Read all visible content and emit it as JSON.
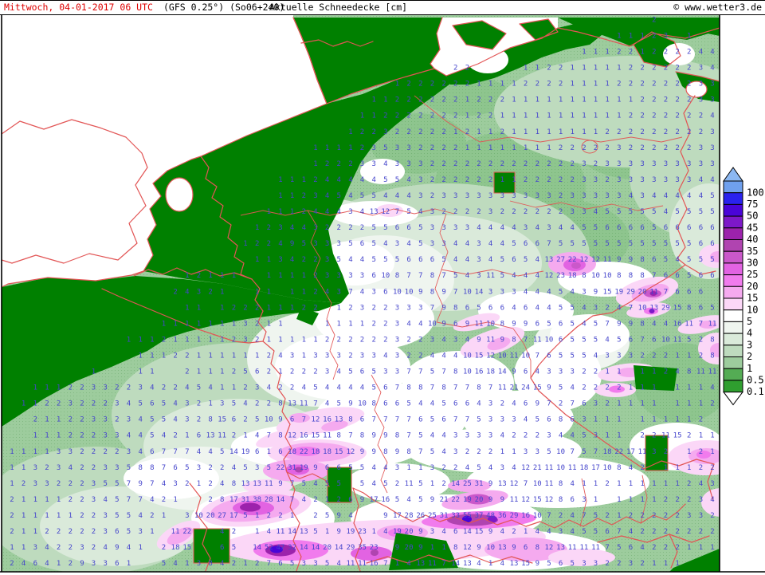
{
  "header": {
    "date_text": "Mittwoch, 04-01-2017  06 UTC",
    "model_text": "(GFS 0.25°) (So06+240)",
    "product_text": "Aktuelle Schneedecke [cm]",
    "copyright_text": "© www.wetter3.de"
  },
  "colors": {
    "header_date_red": "#dd0000",
    "number_blue": "#4545cc",
    "border_red": "#e25555",
    "land_green": "#008000",
    "sea_white": "#ffffff",
    "frame_black": "#000000"
  },
  "legend": {
    "unit": "cm",
    "up_arrow_color": "#8cb8f2",
    "down_arrow_color": "#ffffff",
    "entries": [
      {
        "label": "100",
        "color": "#6fa0ee"
      },
      {
        "label": "75",
        "color": "#2a22ee"
      },
      {
        "label": "50",
        "color": "#4a04d8"
      },
      {
        "label": "45",
        "color": "#7d18c8"
      },
      {
        "label": "40",
        "color": "#9c22ac"
      },
      {
        "label": "35",
        "color": "#b044b0"
      },
      {
        "label": "30",
        "color": "#ca58ca"
      },
      {
        "label": "25",
        "color": "#e263e2"
      },
      {
        "label": "20",
        "color": "#f17bed"
      },
      {
        "label": "15",
        "color": "#f5aaef"
      },
      {
        "label": "10",
        "color": "#fbd7f7"
      },
      {
        "label": "5",
        "color": "#ffffff"
      },
      {
        "label": "4",
        "color": "#eff5ef"
      },
      {
        "label": "3",
        "color": "#daeada"
      },
      {
        "label": "2",
        "color": "#bedbbe"
      },
      {
        "label": "1",
        "color": "#9dcc9d"
      },
      {
        "label": "0.5",
        "color": "#54ac54"
      },
      {
        "label": "0.1",
        "color": "#2f9e2f"
      }
    ]
  },
  "grid": {
    "rows": [
      {
        "s": 55,
        "v": "2"
      },
      {
        "s": 52,
        "v": "1 1 1 2 3 . 1"
      },
      {
        "s": 49,
        "v": "1 1 1 2 2 1 2 2 2 2 4 4"
      },
      {
        "s": 38,
        "v": "2 2 . . . . 1 1 2 2 1 1 1 1 1 2 2 2 2 2 2 3 4"
      },
      {
        "s": 33,
        "v": "1 2 2 2 2 2 2 1 1 1 1 2 2 2 2 1 1 1 1 2 2 2 2 2 2 2 3 3"
      },
      {
        "s": 31,
        "v": "1 1 2 2 2 2 2 2 1 2 2 2 1 1 1 1 1 1 1 1 1 1 1 2 2 2 2 2 3 3"
      },
      {
        "s": 30,
        "v": "1 1 2 2 2 2 2 2 2 1 2 2 1 1 1 1 1 1 1 1 1 1 1 2 2 2 2 2 2 2 4"
      },
      {
        "s": 29,
        "v": "1 2 2 3 2 2 2 2 2 1 2 1 1 2 1 1 1 1 1 1 1 1 2 2 2 2 2 2 2 2 2 3"
      },
      {
        "s": 26,
        "v": "1 1 1 1 2 3 5 3 3 2 2 2 2 1 1 1 1 1 1 1 1 2 2 2 2 2 3 2 2 2 2 2 2 3 3"
      },
      {
        "s": 26,
        "v": "1 2 2 2 3 3 4 3 3 3 2 2 2 2 2 2 2 2 2 2 2 2 2 3 2 3 3 3 3 3 3 3 3 3 3"
      },
      {
        "s": 23,
        "v": "1 1 1 2 4 4 4 4 4 5 5 4 3 2 2 2 2 2 2 1 1 2 2 2 2 2 3 3 2 3 3 3 3 3 3 3 4 4"
      },
      {
        "s": 23,
        "v": "1 1 2 3 4 5 4 5 5 4 4 4 3 2 3 3 3 3 3 3 3 3 3 3 2 3 3 3 3 3 4 3 4 4 4 4 4 5"
      },
      {
        "s": 22,
        "v": "1 1 1 2 4 4 4 3 4 13 12 7 5 4 3 2 2 2 2 3 2 2 2 2 2 2 3 3 4 5 5 5 5 5 4 5 5 5 5"
      },
      {
        "s": 21,
        "v": "1 2 3 4 4 3 2 2 2 2 5 5 6 6 5 3 3 3 3 4 4 4 4 3 4 3 4 4 5 5 6 6 6 6 5 6 6 6 6 6"
      },
      {
        "s": 20,
        "v": "1 2 2 4 9 5 3 3 3 5 6 5 4 3 4 5 3 3 4 4 3 4 4 5 6 6 7 5 5 5 5 5 5 5 5 5 5 5 5 6 6"
      },
      {
        "s": 21,
        "v": "1 1 3 4 2 2 3 5 4 4 5 5 5 6 6 6 5 4 4 3 4 5 6 5 4 13 27 22 12 12 11 9 9 8 6 5 4 5 5 5"
      },
      {
        "s": 15,
        "v": "1 2 1 1 1 . . 1 1 1 1 2 3 3 3 3 6 10 8 7 7 8 7 5 4 3 11 5 4 4 4 12 23 18 8 10 10 8 8 8 7 6 6 5 6 6"
      },
      {
        "s": 14,
        "v": "2 4 3 2 1 . . 1 1 . 1 1 2 4 3 7 4 3 6 10 10 9 8 9 7 10 14 3 3 3 4 4 4 5 4 3 9 15 19 29 20 11 7 6 6 6"
      },
      {
        "s": 15,
        "v": "1 1 . 1 2 2 2 1 1 1 2 2 . 1 2 3 2 2 3 3 3 7 9 8 6 5 6 6 4 6 4 4 5 5 4 3 2 4 7 10 13 29 15 8 6 5"
      },
      {
        "s": 13,
        "v": "1 1 1 1 1 1 1 3 2 1 1 . . . 1 1 1 1 2 2 3 4 4 10 9 6 9 11 10 8 9 9 6 5 6 5 4 5 7 9 9 8 4 4 16 11 7 11"
      },
      {
        "s": 10,
        "v": "1 1 1 2 1 1 1 1 1 2 3 2 1 1 1 1 1 2 2 2 2 2 2 3 2 2 3 4 3 4 9 11 9 8 7 11 10 6 5 5 5 4 5 6 7 6 10 11 5 2 8 17"
      },
      {
        "s": 11,
        "v": "1 1 1 2 2 1 1 1 1 1 1 2 4 3 1 3 3 3 2 3 3 4 3 2 2 4 4 4 10 15 12 10 11 10 7 6 5 5 5 4 3 3 3 2 2 2 1 1 2 8 11"
      },
      {
        "s": 7,
        "v": "1 . . . 1 1 . . 2 1 1 1 2 5 6 2 1 2 2 2 3 4 5 6 5 3 3 7 7 5 7 8 10 16 18 14 9 6 4 3 3 3 2 2 1 1 . 1 1 2 4 8 11 11"
      },
      {
        "s": 2,
        "v": "1 1 1 2 2 3 3 2 2 3 4 2 2 4 5 4 1 1 2 3 4 2 2 4 5 4 4 4 4 5 6 7 8 8 7 8 7 7 8 7 11 21 24 15 9 5 4 2 2 2 2 1 1 1 . 1 1 1 4"
      },
      {
        "s": 1,
        "v": "1 1 2 2 3 2 2 2 3 4 5 6 5 4 3 2 1 3 5 4 2 2 8 13 11 7 4 5 9 10 8 6 6 5 4 4 5 6 6 4 3 2 4 6 9 7 2 7 6 3 2 1 1 1 1 . 1 1 1 2"
      },
      {
        "s": 2,
        "v": "2 1 1 2 2 3 3 2 3 4 5 5 4 3 2 8 15 6 2 5 10 9 6 7 12 16 13 8 6 7 7 7 7 6 5 6 7 7 5 3 3 3 4 5 6 8 6 3 1 1 1 . 1 1 1 1 1 2"
      },
      {
        "s": 2,
        "v": "1 1 1 2 2 2 3 3 4 4 5 4 2 1 6 13 11 2 1 4 7 8 12 16 15 11 8 7 8 9 9 8 7 5 4 4 3 3 3 3 4 2 2 2 3 4 4 5 3 1 1 . 2 2 11 15 2 1 1"
      },
      {
        "s": 0,
        "v": "1 1 1 1 3 3 2 2 2 2 3 4 6 7 7 7 4 4 5 14 19 6 1 6 18 22 18 18 15 12 9 9 8 9 8 7 5 4 3 2 2 2 1 1 3 3 5 10 7 5 7 18 22 17 11 3 2 . 1 2 1"
      },
      {
        "s": 0,
        "v": "1 1 3 2 3 4 2 2 3 3 5 8 8 7 6 5 3 2 2 4 5 3 5 22 31 19 9 6 6 5 5 4 4 3 1 1 3 2 2 4 5 4 3 4 12 21 11 10 11 18 17 10 8 4 2 . 1 1 1 2 2"
      },
      {
        "s": 0,
        "v": "1 2 3 3 2 2 2 3 5 5 7 9 7 4 3 2 1 2 4 8 13 13 11 9 7 5 4 5 5 . 5 4 5 2 11 5 1 2 14 25 31 9 13 12 7 10 11 8 4 1 1 2 1 1 1 1 1 1 2 4 3"
      },
      {
        "s": 0,
        "v": "2 1 1 1 1 2 2 3 4 5 7 7 4 2 1 . . 2 8 17 31 38 28 14 7 4 2 1 2 6 9 17 16 5 4 5 9 21 22 19 20 9 9 11 12 15 12 8 6 3 1 . 1 1 1 1 2 2 2 3 4"
      },
      {
        "s": 0,
        "v": "2 1 1 1 1 1 2 2 3 5 5 4 2 1 . 3 10 20 27 17 5 1 2 2 1 . 2 5 9 4 . . 9 17 28 26 25 31 33 55 37 48 36 29 16 10 7 2 4 7 5 2 1 2 2 2 2 2 3 3 2"
      },
      {
        "s": 0,
        "v": "2 1 1 2 2 2 2 2 3 6 5 3 1 . 11 22 . . 4 2 . 1 4 11 14 13 5 1 9 19 23 1 4 19 20 9 3 4 6 14 15 9 4 2 1 4 4 3 4 5 5 6 7 4 2 2 2 2 2 2 2"
      },
      {
        "s": 0,
        "v": "1 1 3 4 2 2 3 2 4 9 4 1 . 2 18 15 . . 6 5 . 14 52 47 32 14 14 20 14 29 35 23 . 9 20 9 1 1 8 12 9 10 13 9 6 8 12 13 11 11 11 7 5 6 4 2 2 2 1 1 1"
      },
      {
        "s": 0,
        "v": "2 4 6 4 1 2 9 3 3 6 1 . . 5 4 1 3 8 4 2 1 2 7 6 5 3 3 5 4 11 11 16 7 1 4 13 11 7 14 13 4 1 4 13 15 9 5 6 5 3 3 2 2 3 2 1 1 1"
      }
    ]
  }
}
